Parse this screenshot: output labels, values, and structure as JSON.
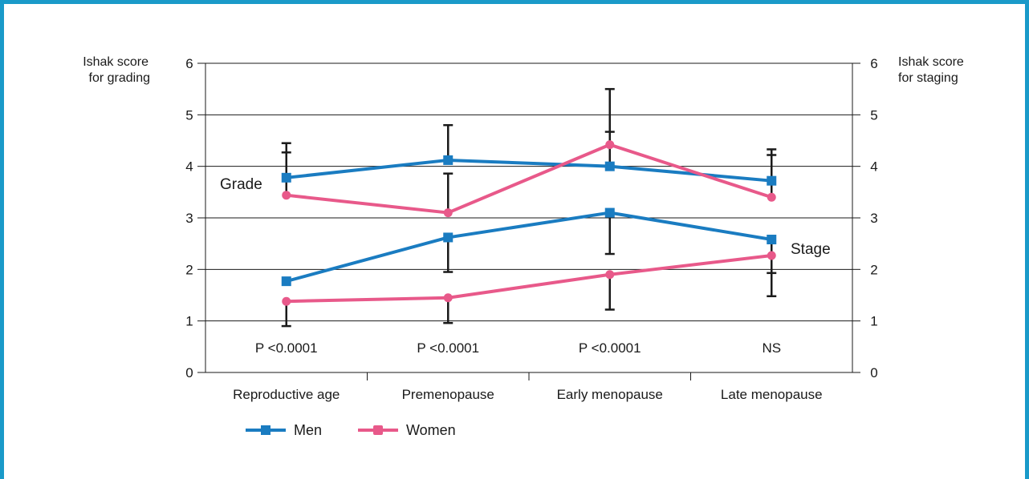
{
  "colors": {
    "men": "#1a7cc1",
    "women": "#e8598a",
    "grid": "#1a1a1a",
    "frame": "#1a9ac9"
  },
  "chart_data": {
    "type": "line",
    "categories": [
      "Reproductive age",
      "Premenopause",
      "Early menopause",
      "Late menopause"
    ],
    "ylim": [
      0,
      6
    ],
    "yticks": [
      "0",
      "1",
      "2",
      "3",
      "4",
      "5",
      "6"
    ],
    "ylabel_left": [
      "Ishak score",
      "for grading"
    ],
    "ylabel_right": [
      "Ishak score",
      "for staging"
    ],
    "grid": true,
    "legend_position": "bottom-left",
    "group_labels": {
      "grade": "Grade",
      "stage": "Stage"
    },
    "p_values": [
      "P <0.0001",
      "P <0.0001",
      "P <0.0001",
      "NS"
    ],
    "series": [
      {
        "name": "Men",
        "group": "grade",
        "marker": "square",
        "color": "#1a7cc1",
        "values": [
          3.78,
          4.12,
          4.0,
          3.72
        ],
        "err_high": [
          4.45,
          4.8,
          4.67,
          4.33
        ],
        "err_low": [
          null,
          null,
          null,
          null
        ]
      },
      {
        "name": "Women",
        "group": "grade",
        "marker": "circle",
        "color": "#e8598a",
        "values": [
          3.44,
          3.1,
          4.42,
          3.4
        ],
        "err_high": [
          4.27,
          3.86,
          5.5,
          4.22
        ],
        "err_low": [
          null,
          null,
          null,
          null
        ]
      },
      {
        "name": "Men",
        "group": "stage",
        "marker": "square",
        "color": "#1a7cc1",
        "values": [
          1.77,
          2.62,
          3.1,
          2.58
        ],
        "err_high": [
          null,
          null,
          null,
          null
        ],
        "err_low": [
          null,
          1.95,
          2.3,
          1.93
        ]
      },
      {
        "name": "Women",
        "group": "stage",
        "marker": "circle",
        "color": "#e8598a",
        "values": [
          1.38,
          1.45,
          1.9,
          2.27
        ],
        "err_high": [
          null,
          null,
          null,
          null
        ],
        "err_low": [
          0.9,
          0.96,
          1.22,
          1.48
        ]
      }
    ],
    "legend": [
      {
        "name": "Men",
        "color": "#1a7cc1",
        "marker": "square"
      },
      {
        "name": "Women",
        "color": "#e8598a",
        "marker": "circle"
      }
    ]
  }
}
